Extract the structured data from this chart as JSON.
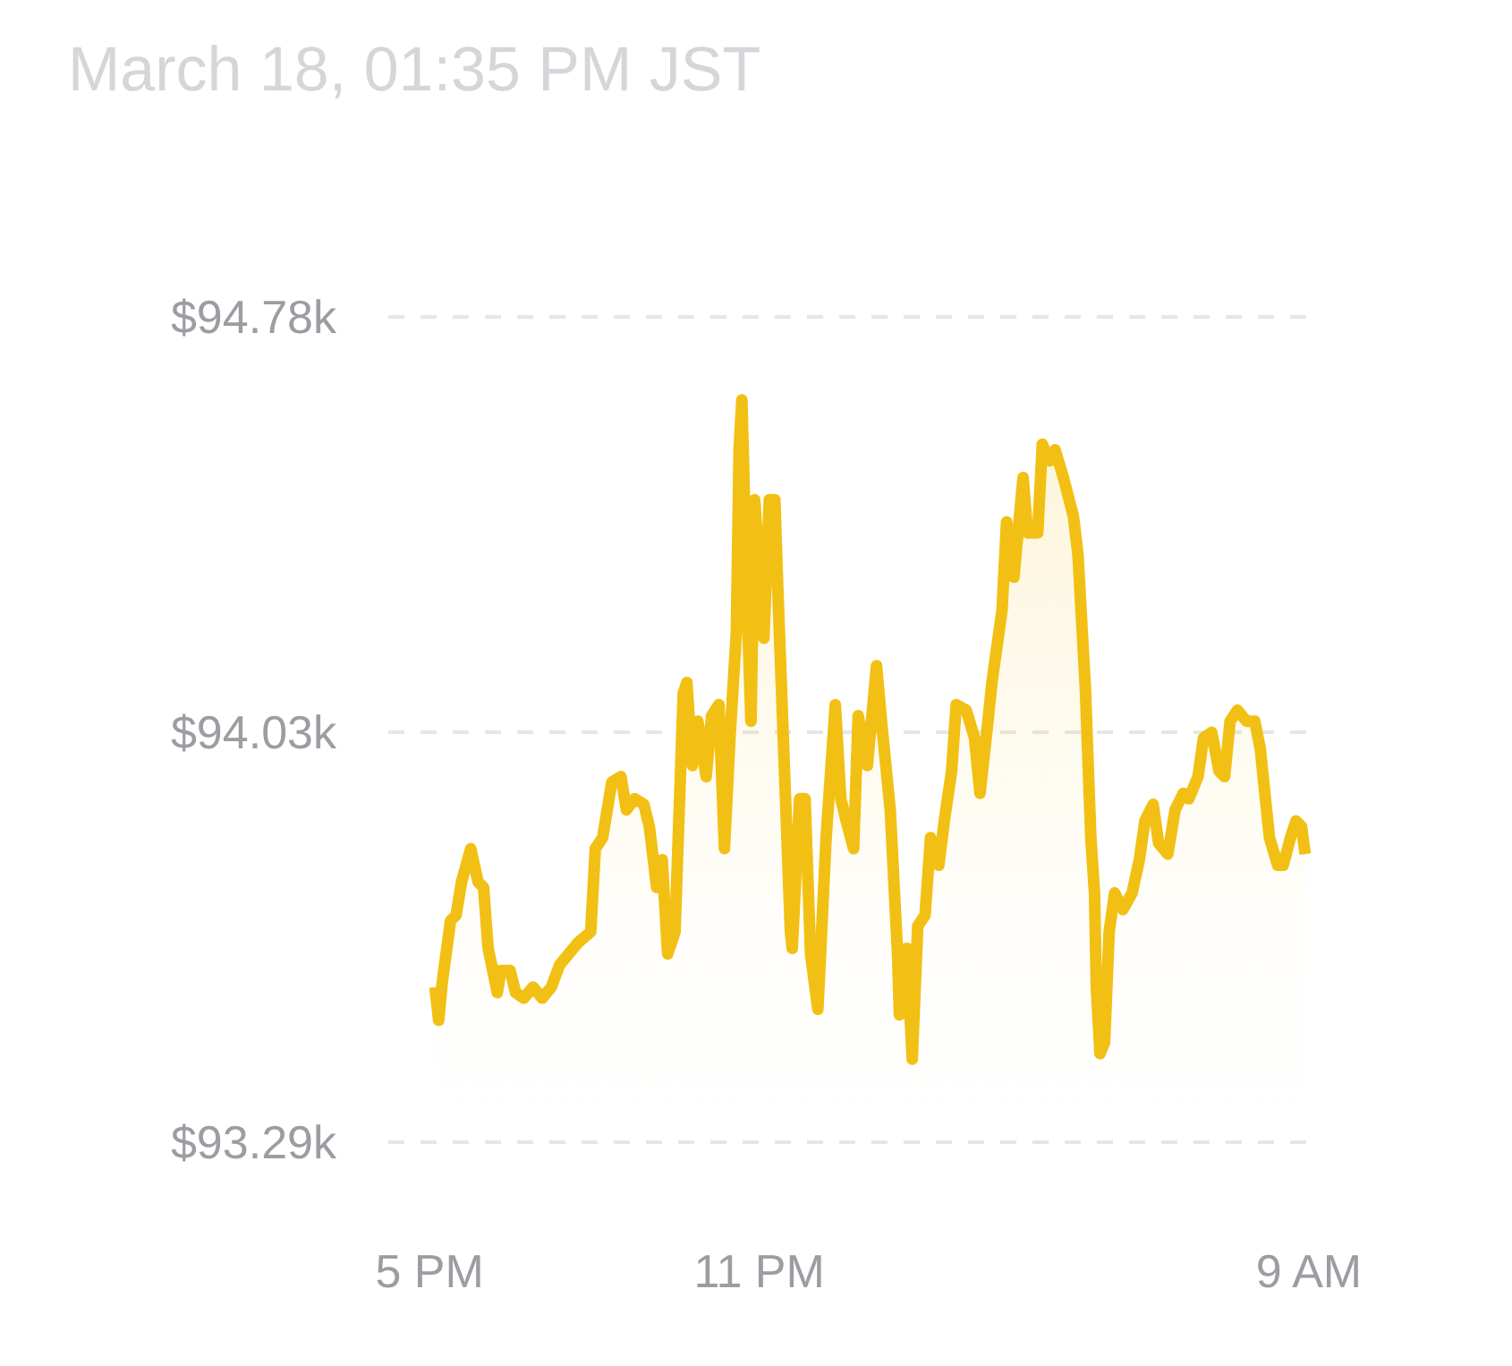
{
  "chart_data": {
    "type": "area",
    "title": "March 18, 01:35 PM JST",
    "x": [
      "--03-17T17:06",
      "--03-17T17:10",
      "--03-17T17:14",
      "--03-17T17:23",
      "--03-17T17:29",
      "--03-17T17:35",
      "--03-17T17:45",
      "--03-17T17:53",
      "--03-17T17:59",
      "--03-17T18:04",
      "--03-17T18:14",
      "--03-17T18:18",
      "--03-17T18:28",
      "--03-17T18:34",
      "--03-17T18:43",
      "--03-17T18:53",
      "--03-17T19:03",
      "--03-17T19:13",
      "--03-17T19:22",
      "--03-17T19:32",
      "--03-17T19:42",
      "--03-17T19:56",
      "--03-17T20:01",
      "--03-17T20:09",
      "--03-17T20:19",
      "--03-17T20:29",
      "--03-17T20:35",
      "--03-17T20:44",
      "--03-17T20:54",
      "--03-17T21:00",
      "--03-17T21:08",
      "--03-17T21:14",
      "--03-17T21:20",
      "--03-17T21:28",
      "--03-17T21:37",
      "--03-17T21:41",
      "--03-17T21:47",
      "--03-17T21:53",
      "--03-17T22:02",
      "--03-17T22:08",
      "--03-17T22:16",
      "--03-17T22:22",
      "--03-17T22:28",
      "--03-17T22:35",
      "--03-17T22:38",
      "--03-17T22:41",
      "--03-17T22:47",
      "--03-17T22:51",
      "--03-17T22:55",
      "--03-17T23:05",
      "--03-17T23:11",
      "--03-17T23:17",
      "--03-17T23:20",
      "--03-17T23:26",
      "--03-17T23:34",
      "--03-17T23:36",
      "--03-17T23:44",
      "--03-17T23:50",
      "--03-17T23:56",
      "--03-18T00:04",
      "--03-18T00:13",
      "--03-18T00:23",
      "--03-18T00:29",
      "--03-18T00:35",
      "--03-18T00:43",
      "--03-18T00:48",
      "--03-18T00:58",
      "--03-18T01:08",
      "--03-18T01:14",
      "--03-18T01:23",
      "--03-18T01:31",
      "--03-18T01:33",
      "--03-18T01:41",
      "--03-18T01:47",
      "--03-18T01:53",
      "--03-18T02:01",
      "--03-18T02:07",
      "--03-18T02:16",
      "--03-18T02:22",
      "--03-18T02:30",
      "--03-18T02:35",
      "--03-18T02:46",
      "--03-18T02:55",
      "--03-18T03:01",
      "--03-18T03:09",
      "--03-18T03:14",
      "--03-18T03:25",
      "--03-18T03:30",
      "--03-18T03:38",
      "--03-18T03:48",
      "--03-18T03:53",
      "--03-18T04:04",
      "--03-18T04:09",
      "--03-18T04:17",
      "--03-18T04:23",
      "--03-18T04:32",
      "--03-18T04:43",
      "--03-18T04:48",
      "--03-18T04:52",
      "--03-18T04:56",
      "--03-18T05:02",
      "--03-18T05:06",
      "--03-18T05:08",
      "--03-18T05:12",
      "--03-18T05:17",
      "--03-18T05:22",
      "--03-18T05:28",
      "--03-18T05:37",
      "--03-18T05:47",
      "--03-18T05:55",
      "--03-18T06:01",
      "--03-18T06:10",
      "--03-18T06:16",
      "--03-18T06:26",
      "--03-18T06:34",
      "--03-18T06:43",
      "--03-18T06:49",
      "--03-18T06:59",
      "--03-18T07:05",
      "--03-18T07:14",
      "--03-18T07:22",
      "--03-18T07:28",
      "--03-18T07:34",
      "--03-18T07:42",
      "--03-18T07:52",
      "--03-18T08:01",
      "--03-18T08:07",
      "--03-18T08:17",
      "--03-18T08:26",
      "--03-18T08:32",
      "--03-18T08:40",
      "--03-18T08:46",
      "--03-18T08:52",
      "--03-18T08:56"
    ],
    "values": [
      93.57,
      93.51,
      93.58,
      93.69,
      93.7,
      93.76,
      93.82,
      93.76,
      93.75,
      93.64,
      93.56,
      93.6,
      93.6,
      93.56,
      93.55,
      93.57,
      93.55,
      93.57,
      93.61,
      93.63,
      93.65,
      93.67,
      93.82,
      93.84,
      93.94,
      93.95,
      93.89,
      93.91,
      93.9,
      93.86,
      93.75,
      93.8,
      93.63,
      93.67,
      94.1,
      94.12,
      93.97,
      94.05,
      93.95,
      94.06,
      94.08,
      93.82,
      94.02,
      94.21,
      94.54,
      94.63,
      94.25,
      94.05,
      94.45,
      94.2,
      94.45,
      94.45,
      94.3,
      94.03,
      93.67,
      93.64,
      93.91,
      93.91,
      93.63,
      93.53,
      93.84,
      94.08,
      93.91,
      93.87,
      93.82,
      94.06,
      93.97,
      94.15,
      94.04,
      93.89,
      93.63,
      93.52,
      93.64,
      93.44,
      93.68,
      93.7,
      93.84,
      93.79,
      93.87,
      93.96,
      94.08,
      94.07,
      94.02,
      93.92,
      94.04,
      94.12,
      94.25,
      94.41,
      94.31,
      94.49,
      94.39,
      94.39,
      94.55,
      94.52,
      94.54,
      94.49,
      94.42,
      94.35,
      94.23,
      94.11,
      93.84,
      93.74,
      93.57,
      93.45,
      93.47,
      93.67,
      93.74,
      93.71,
      93.74,
      93.8,
      93.87,
      93.9,
      93.83,
      93.81,
      93.89,
      93.92,
      93.91,
      93.95,
      94.02,
      94.03,
      93.96,
      93.95,
      94.05,
      94.07,
      94.05,
      94.05,
      94.0,
      93.84,
      93.79,
      93.79,
      93.84,
      93.87,
      93.86,
      93.81
    ],
    "color": "#f2c014",
    "xlim": [
      "--03-17T16:15",
      "--03-18T09:03"
    ],
    "xticks": [
      {
        "value": "--03-17T17:00",
        "label": "5 PM"
      },
      {
        "value": "--03-17T23:00",
        "label": "11 PM"
      },
      {
        "value": "--03-18T09:00",
        "label": "9 AM"
      }
    ],
    "ylim": [
      93.29,
      94.78
    ],
    "yticks": [
      {
        "value": 93.29,
        "label": "$93.29k"
      },
      {
        "value": 94.03,
        "label": "$94.03k"
      },
      {
        "value": 94.78,
        "label": "$94.78k"
      }
    ],
    "grid": "y"
  }
}
